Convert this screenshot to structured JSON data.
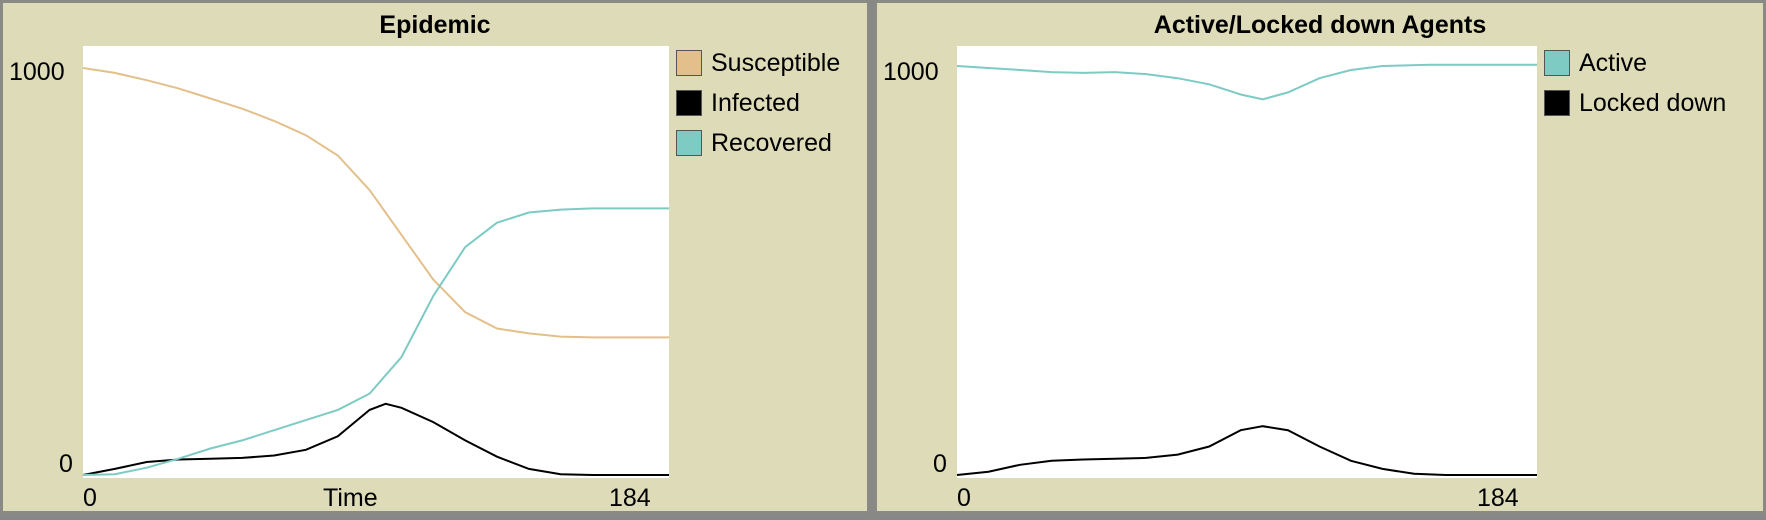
{
  "chart_data": [
    {
      "type": "line",
      "title": "Epidemic",
      "xlabel": "Time",
      "ylabel": "",
      "xlim": [
        0,
        184
      ],
      "ylim": [
        0,
        1000
      ],
      "x_ticks": [
        "0",
        "184"
      ],
      "y_ticks": [
        "0",
        "1000"
      ],
      "legend_position": "right",
      "series": [
        {
          "name": "Susceptible",
          "color": "#e3c08b",
          "points": [
            [
              0,
              1000
            ],
            [
              10,
              988
            ],
            [
              20,
              970
            ],
            [
              30,
              950
            ],
            [
              40,
              925
            ],
            [
              50,
              900
            ],
            [
              60,
              870
            ],
            [
              70,
              835
            ],
            [
              80,
              785
            ],
            [
              90,
              700
            ],
            [
              100,
              590
            ],
            [
              110,
              480
            ],
            [
              120,
              400
            ],
            [
              130,
              360
            ],
            [
              140,
              348
            ],
            [
              150,
              340
            ],
            [
              160,
              338
            ],
            [
              170,
              338
            ],
            [
              184,
              338
            ]
          ]
        },
        {
          "name": "Infected",
          "color": "#000000",
          "points": [
            [
              0,
              0
            ],
            [
              10,
              15
            ],
            [
              20,
              32
            ],
            [
              30,
              38
            ],
            [
              40,
              40
            ],
            [
              50,
              42
            ],
            [
              60,
              48
            ],
            [
              70,
              62
            ],
            [
              80,
              95
            ],
            [
              90,
              160
            ],
            [
              95,
              175
            ],
            [
              100,
              165
            ],
            [
              110,
              130
            ],
            [
              120,
              85
            ],
            [
              130,
              45
            ],
            [
              140,
              15
            ],
            [
              150,
              2
            ],
            [
              160,
              0
            ],
            [
              184,
              0
            ]
          ]
        },
        {
          "name": "Recovered",
          "color": "#7dcbc3",
          "points": [
            [
              0,
              0
            ],
            [
              10,
              2
            ],
            [
              20,
              18
            ],
            [
              30,
              40
            ],
            [
              40,
              65
            ],
            [
              50,
              85
            ],
            [
              60,
              110
            ],
            [
              70,
              135
            ],
            [
              80,
              160
            ],
            [
              90,
              200
            ],
            [
              100,
              290
            ],
            [
              110,
              440
            ],
            [
              120,
              560
            ],
            [
              130,
              620
            ],
            [
              140,
              645
            ],
            [
              150,
              652
            ],
            [
              160,
              655
            ],
            [
              170,
              655
            ],
            [
              184,
              655
            ]
          ]
        }
      ]
    },
    {
      "type": "line",
      "title": "Active/Locked down Agents",
      "xlabel": "",
      "ylabel": "",
      "xlim": [
        0,
        184
      ],
      "ylim": [
        0,
        1000
      ],
      "x_ticks": [
        "0",
        "184"
      ],
      "y_ticks": [
        "0",
        "1000"
      ],
      "legend_position": "right",
      "series": [
        {
          "name": "Active",
          "color": "#7dcbc3",
          "points": [
            [
              0,
              1005
            ],
            [
              10,
              1000
            ],
            [
              20,
              995
            ],
            [
              30,
              990
            ],
            [
              40,
              988
            ],
            [
              50,
              990
            ],
            [
              60,
              985
            ],
            [
              70,
              975
            ],
            [
              80,
              960
            ],
            [
              90,
              935
            ],
            [
              97,
              923
            ],
            [
              105,
              940
            ],
            [
              115,
              975
            ],
            [
              125,
              995
            ],
            [
              135,
              1005
            ],
            [
              150,
              1008
            ],
            [
              170,
              1008
            ],
            [
              184,
              1008
            ]
          ]
        },
        {
          "name": "Locked down",
          "color": "#000000",
          "points": [
            [
              0,
              0
            ],
            [
              10,
              8
            ],
            [
              20,
              25
            ],
            [
              30,
              35
            ],
            [
              40,
              38
            ],
            [
              50,
              40
            ],
            [
              60,
              42
            ],
            [
              70,
              50
            ],
            [
              80,
              70
            ],
            [
              90,
              110
            ],
            [
              97,
              120
            ],
            [
              105,
              110
            ],
            [
              115,
              70
            ],
            [
              125,
              35
            ],
            [
              135,
              15
            ],
            [
              145,
              3
            ],
            [
              155,
              0
            ],
            [
              184,
              0
            ]
          ]
        }
      ]
    }
  ]
}
